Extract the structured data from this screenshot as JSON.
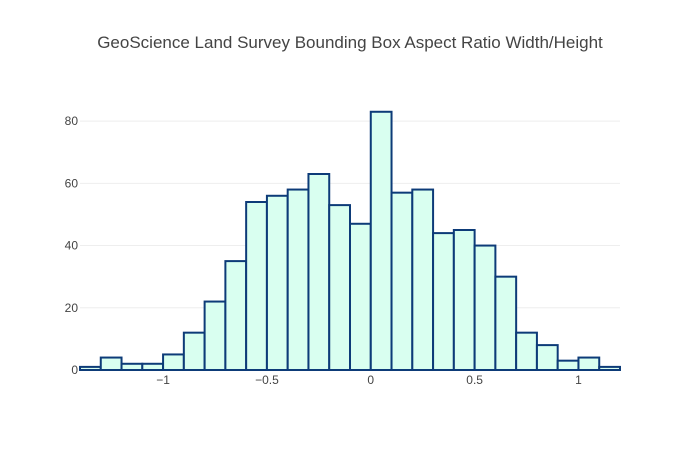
{
  "chart_data": {
    "type": "bar",
    "title": "GeoScience Land Survey Bounding Box Aspect Ratio Width/Height",
    "xlabel": "",
    "ylabel": "",
    "bin_edges": [
      -1.4,
      -1.3,
      -1.2,
      -1.1,
      -1.0,
      -0.9,
      -0.8,
      -0.7,
      -0.6,
      -0.5,
      -0.4,
      -0.3,
      -0.2,
      -0.1,
      0.0,
      0.1,
      0.2,
      0.3,
      0.4,
      0.5,
      0.6,
      0.7,
      0.8,
      0.9,
      1.0,
      1.1,
      1.2
    ],
    "values": [
      1,
      4,
      2,
      2,
      5,
      12,
      22,
      35,
      54,
      56,
      58,
      63,
      53,
      47,
      83,
      57,
      58,
      44,
      45,
      40,
      30,
      12,
      8,
      3,
      4,
      1
    ],
    "xlim": [
      -1.4,
      1.2
    ],
    "ylim": [
      0,
      90
    ],
    "x_ticks": [
      -1,
      -0.5,
      0,
      0.5,
      1
    ],
    "x_tick_labels": [
      "−1",
      "−0.5",
      "0",
      "0.5",
      "1"
    ],
    "y_ticks": [
      0,
      20,
      40,
      60,
      80
    ],
    "y_tick_labels": [
      "0",
      "20",
      "40",
      "60",
      "80"
    ],
    "grid": true,
    "bar_fill": "#d9fff0",
    "bar_stroke": "#0d3b78",
    "grid_color": "#eeeeee"
  }
}
